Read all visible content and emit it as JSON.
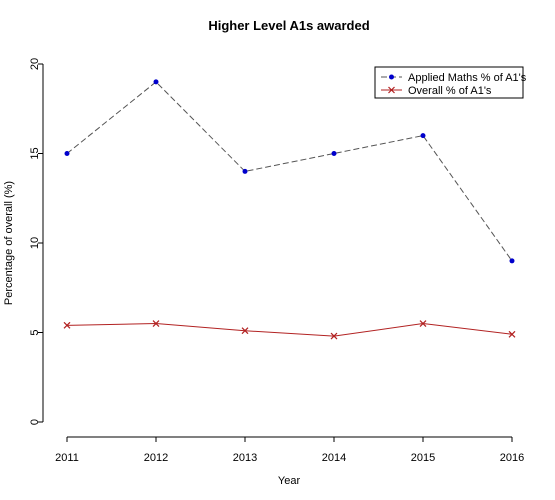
{
  "chart_data": {
    "type": "line",
    "title": "Higher Level A1s awarded",
    "xlabel": "Year",
    "ylabel": "Percentage of overall (%)",
    "x": [
      2011,
      2012,
      2013,
      2014,
      2015,
      2016
    ],
    "x_ticks": [
      "2011",
      "2012",
      "2013",
      "2014",
      "2015",
      "2016"
    ],
    "y_ticks": [
      "0",
      "5",
      "10",
      "15",
      "20"
    ],
    "ylim": [
      0,
      20
    ],
    "xlim": [
      2011,
      2016
    ],
    "grid": false,
    "legend_position": "top-right",
    "series": [
      {
        "name": "Applied Maths % of A1's",
        "values": [
          15,
          19,
          14,
          15,
          16,
          9
        ],
        "line_color": "#555555",
        "marker_color": "#0000cc",
        "marker": "dot",
        "line_style": "dashed"
      },
      {
        "name": "Overall % of A1's",
        "values": [
          5.4,
          5.5,
          5.1,
          4.8,
          5.5,
          4.9
        ],
        "line_color": "#b22222",
        "marker_color": "#b22222",
        "marker": "cross",
        "line_style": "solid"
      }
    ]
  }
}
